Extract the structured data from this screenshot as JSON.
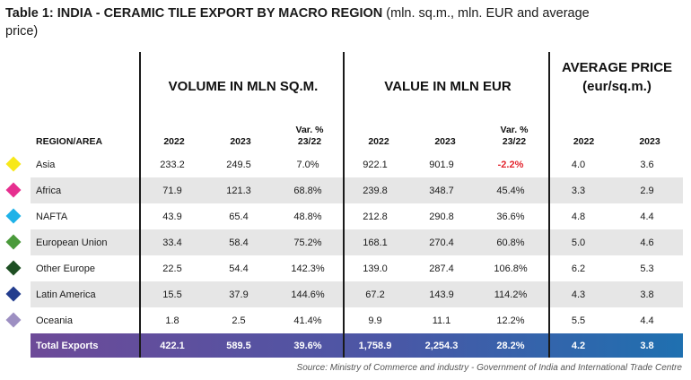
{
  "title": {
    "bold": "Table 1: INDIA - CERAMIC TILE EXPORT BY MACRO REGION",
    "rest": " (mln. sq.m., mln. EUR and average price)"
  },
  "groups": {
    "volume": "VOLUME IN MLN SQ.M.",
    "value": "VALUE IN MLN EUR",
    "price_line1": "AVERAGE PRICE",
    "price_line2": "(eur/sq.m.)"
  },
  "columns": {
    "region": "REGION/AREA",
    "y2022": "2022",
    "y2023": "2023",
    "var_line1": "Var. %",
    "var_line2": "23/22"
  },
  "rows": [
    {
      "region": "Asia",
      "color": "#f7e81a",
      "vol_2022": "233.2",
      "vol_2023": "249.5",
      "vol_var": "7.0%",
      "val_2022": "922.1",
      "val_2023": "901.9",
      "val_var": "-2.2%",
      "price_2022": "4.0",
      "price_2023": "3.6"
    },
    {
      "region": "Africa",
      "color": "#e62f8f",
      "vol_2022": "71.9",
      "vol_2023": "121.3",
      "vol_var": "68.8%",
      "val_2022": "239.8",
      "val_2023": "348.7",
      "val_var": "45.4%",
      "price_2022": "3.3",
      "price_2023": "2.9"
    },
    {
      "region": "NAFTA",
      "color": "#1fb2e8",
      "vol_2022": "43.9",
      "vol_2023": "65.4",
      "vol_var": "48.8%",
      "val_2022": "212.8",
      "val_2023": "290.8",
      "val_var": "36.6%",
      "price_2022": "4.8",
      "price_2023": "4.4"
    },
    {
      "region": "European Union",
      "color": "#4a9a3b",
      "vol_2022": "33.4",
      "vol_2023": "58.4",
      "vol_var": "75.2%",
      "val_2022": "168.1",
      "val_2023": "270.4",
      "val_var": "60.8%",
      "price_2022": "5.0",
      "price_2023": "4.6"
    },
    {
      "region": "Other Europe",
      "color": "#1e4f23",
      "vol_2022": "22.5",
      "vol_2023": "54.4",
      "vol_var": "142.3%",
      "val_2022": "139.0",
      "val_2023": "287.4",
      "val_var": "106.8%",
      "price_2022": "6.2",
      "price_2023": "5.3"
    },
    {
      "region": "Latin America",
      "color": "#233d8e",
      "vol_2022": "15.5",
      "vol_2023": "37.9",
      "vol_var": "144.6%",
      "val_2022": "67.2",
      "val_2023": "143.9",
      "val_var": "114.2%",
      "price_2022": "4.3",
      "price_2023": "3.8"
    },
    {
      "region": "Oceania",
      "color": "#9d8fc2",
      "vol_2022": "1.8",
      "vol_2023": "2.5",
      "vol_var": "41.4%",
      "val_2022": "9.9",
      "val_2023": "11.1",
      "val_var": "12.2%",
      "price_2022": "5.5",
      "price_2023": "4.4"
    }
  ],
  "total": {
    "region": "Total Exports",
    "vol_2022": "422.1",
    "vol_2023": "589.5",
    "vol_var": "39.6%",
    "val_2022": "1,758.9",
    "val_2023": "2,254.3",
    "val_var": "28.2%",
    "price_2022": "4.2",
    "price_2023": "3.8"
  },
  "source": "Source: Ministry of Commerce and industry - Government of India and International Trade Centre"
}
